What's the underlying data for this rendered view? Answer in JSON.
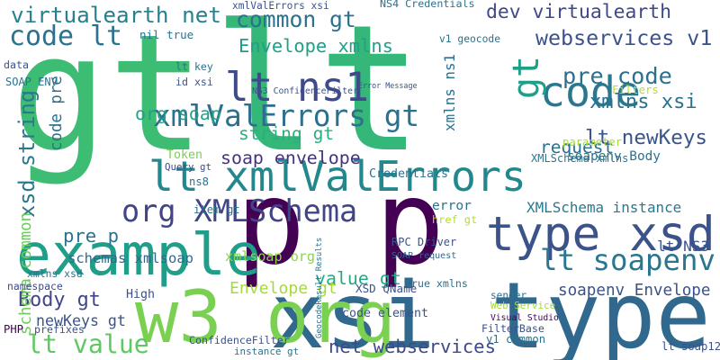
{
  "words": [
    "gt",
    "lt",
    "p p",
    "xsi type",
    "w3 org",
    "example",
    "lt xmlValErrors",
    "lt ns1",
    "xmlValErrors gt",
    "code",
    "gt",
    "type xsd",
    "org XMLSchema",
    "common gt",
    "code lt",
    "virtualearth net",
    "webservices v1",
    "dev virtualearth",
    "Envelope xmlns",
    "pre code",
    "xmlns xsi",
    "string gt",
    "lt newKeys",
    "soap envelope",
    "request",
    "lt soapenv",
    "Body gt",
    "newKeys gt",
    "lt value",
    "net webservices",
    "value gt",
    "Envelope gt",
    "soapenv Envelope",
    "xsd string",
    "code pre",
    "org soap",
    "pre p",
    "xmlsoap org",
    "schemas xmlsoap",
    "XMLSchema instance",
    "error",
    "href gt",
    "lt NS3",
    "RPC Driver",
    "SOAP request",
    "schema common",
    "Visual Studio",
    "ConfidenceFilter",
    "instance gt",
    "v1 geocode",
    "lt soap12",
    "v1 common",
    "Web Service",
    "item gt",
    "ns8",
    "xmlns ns1",
    "GeocodeResult Results",
    "xmlValErrors xsi",
    "NS4 Credentials",
    "lt key",
    "id xsi",
    "Error Message",
    "NS3 ConfidenceFilter",
    "Credentials",
    "Token",
    "Query gt",
    "xmlns xsd",
    "namespace",
    "High",
    "PHP",
    "prefixes",
    "code element",
    "XSD QName",
    "true xmlns",
    "FilterBase",
    "sender",
    "Filters",
    "soapenv Body",
    "parameter",
    "XMLSchema xmlns",
    "SOAP ENV",
    "data",
    "nil true"
  ]
}
